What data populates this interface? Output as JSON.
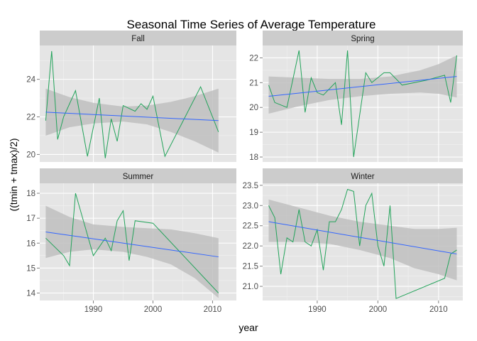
{
  "chart_data": {
    "type": "line",
    "title": "Seasonal Time Series of Average Temperature",
    "xlabel": "year",
    "ylabel": "((tmin + tmax)/2)",
    "xlim": [
      1981,
      2014
    ],
    "x_ticks": [
      1990,
      2000,
      2010
    ],
    "grid": true,
    "facets": [
      {
        "name": "Fall",
        "ylim": [
          19.6,
          25.8
        ],
        "y_ticks": [
          20,
          22,
          24
        ],
        "x": [
          1982,
          1983,
          1984,
          1985,
          1987,
          1989,
          1991,
          1992,
          1993,
          1994,
          1995,
          1997,
          1998,
          1999,
          2000,
          2002,
          2008,
          2011
        ],
        "values": [
          21.8,
          25.5,
          20.8,
          22.0,
          23.4,
          19.9,
          23.0,
          19.8,
          21.9,
          20.7,
          22.6,
          22.3,
          22.7,
          22.4,
          23.1,
          19.9,
          23.6,
          21.2
        ],
        "trend": {
          "start": [
            1982,
            22.25
          ],
          "end": [
            2011,
            21.8
          ]
        },
        "band_upper": [
          [
            1982,
            23.5
          ],
          [
            1986,
            23.05
          ],
          [
            1990,
            22.75
          ],
          [
            1995,
            22.55
          ],
          [
            1999,
            22.6
          ],
          [
            2003,
            22.8
          ],
          [
            2007,
            23.1
          ],
          [
            2011,
            23.5
          ]
        ],
        "band_lower": [
          [
            1982,
            21.0
          ],
          [
            1986,
            21.45
          ],
          [
            1990,
            21.65
          ],
          [
            1995,
            21.75
          ],
          [
            1999,
            21.6
          ],
          [
            2003,
            21.2
          ],
          [
            2007,
            20.7
          ],
          [
            2011,
            20.1
          ]
        ]
      },
      {
        "name": "Spring",
        "ylim": [
          17.8,
          22.5
        ],
        "y_ticks": [
          18,
          19,
          20,
          21,
          22
        ],
        "x": [
          1982,
          1983,
          1985,
          1987,
          1988,
          1989,
          1990,
          1991,
          1993,
          1994,
          1995,
          1996,
          1998,
          1999,
          2001,
          2002,
          2004,
          2008,
          2011,
          2012,
          2013
        ],
        "values": [
          20.9,
          20.2,
          20.0,
          22.3,
          19.8,
          21.2,
          20.6,
          20.5,
          21.0,
          19.3,
          22.3,
          18.0,
          21.4,
          21.0,
          21.4,
          21.4,
          20.9,
          21.1,
          21.3,
          20.2,
          22.1
        ],
        "trend": {
          "start": [
            1982,
            20.45
          ],
          "end": [
            2013,
            21.25
          ]
        },
        "band_upper": [
          [
            1982,
            21.25
          ],
          [
            1987,
            21.2
          ],
          [
            1992,
            21.15
          ],
          [
            1997,
            21.15
          ],
          [
            2002,
            21.25
          ],
          [
            2007,
            21.5
          ],
          [
            2010,
            21.75
          ],
          [
            2013,
            22.1
          ]
        ],
        "band_lower": [
          [
            1982,
            19.75
          ],
          [
            1987,
            20.05
          ],
          [
            1992,
            20.3
          ],
          [
            1997,
            20.45
          ],
          [
            2002,
            20.55
          ],
          [
            2007,
            20.6
          ],
          [
            2010,
            20.55
          ],
          [
            2013,
            20.4
          ]
        ]
      },
      {
        "name": "Summer",
        "ylim": [
          13.7,
          18.4
        ],
        "y_ticks": [
          14,
          15,
          16,
          17,
          18
        ],
        "x": [
          1982,
          1985,
          1986,
          1987,
          1990,
          1992,
          1993,
          1994,
          1995,
          1996,
          1997,
          2000,
          2011
        ],
        "values": [
          16.2,
          15.5,
          15.1,
          18.0,
          15.5,
          16.2,
          15.7,
          16.9,
          17.3,
          15.3,
          16.9,
          16.8,
          14.0
        ],
        "trend": {
          "start": [
            1982,
            16.45
          ],
          "end": [
            2011,
            15.45
          ]
        },
        "band_upper": [
          [
            1982,
            17.5
          ],
          [
            1986,
            17.05
          ],
          [
            1990,
            16.75
          ],
          [
            1995,
            16.65
          ],
          [
            1999,
            16.6
          ],
          [
            2003,
            16.55
          ],
          [
            2007,
            16.4
          ],
          [
            2011,
            16.2
          ]
        ],
        "band_lower": [
          [
            1982,
            15.4
          ],
          [
            1986,
            15.65
          ],
          [
            1990,
            15.75
          ],
          [
            1995,
            15.65
          ],
          [
            1999,
            15.45
          ],
          [
            2003,
            15.15
          ],
          [
            2007,
            14.6
          ],
          [
            2011,
            13.8
          ]
        ]
      },
      {
        "name": "Winter",
        "ylim": [
          20.65,
          23.55
        ],
        "y_ticks": [
          21.0,
          21.5,
          22.0,
          22.5,
          23.0,
          23.5
        ],
        "x": [
          1982,
          1983,
          1984,
          1985,
          1986,
          1987,
          1988,
          1989,
          1990,
          1991,
          1992,
          1993,
          1994,
          1995,
          1996,
          1997,
          1998,
          1999,
          2000,
          2001,
          2002,
          2003,
          2011,
          2012,
          2013
        ],
        "values": [
          23.0,
          22.7,
          21.3,
          22.2,
          22.1,
          22.9,
          22.1,
          22.0,
          22.4,
          21.4,
          22.6,
          22.6,
          22.9,
          23.4,
          23.35,
          22.0,
          23.0,
          23.3,
          22.0,
          21.5,
          23.0,
          20.7,
          21.2,
          21.8,
          21.9
        ],
        "trend": {
          "start": [
            1982,
            22.6
          ],
          "end": [
            2013,
            21.8
          ]
        },
        "band_upper": [
          [
            1982,
            23.15
          ],
          [
            1987,
            22.95
          ],
          [
            1992,
            22.75
          ],
          [
            1997,
            22.6
          ],
          [
            2002,
            22.5
          ],
          [
            2006,
            22.42
          ],
          [
            2010,
            22.42
          ],
          [
            2013,
            22.45
          ]
        ],
        "band_lower": [
          [
            1982,
            22.1
          ],
          [
            1987,
            22.1
          ],
          [
            1992,
            22.05
          ],
          [
            1997,
            21.9
          ],
          [
            2002,
            21.7
          ],
          [
            2006,
            21.45
          ],
          [
            2010,
            21.3
          ],
          [
            2013,
            21.15
          ]
        ]
      }
    ],
    "colors": {
      "panel_bg": "#e5e5e5",
      "strip_bg": "#cccccc",
      "grid_major": "#ffffff",
      "grid_minor": "#f2f2f2",
      "band": "#bfbfbf",
      "series_line": "#22a35a",
      "trend_line": "#3366ff",
      "tick_text": "#4d4d4d"
    }
  }
}
